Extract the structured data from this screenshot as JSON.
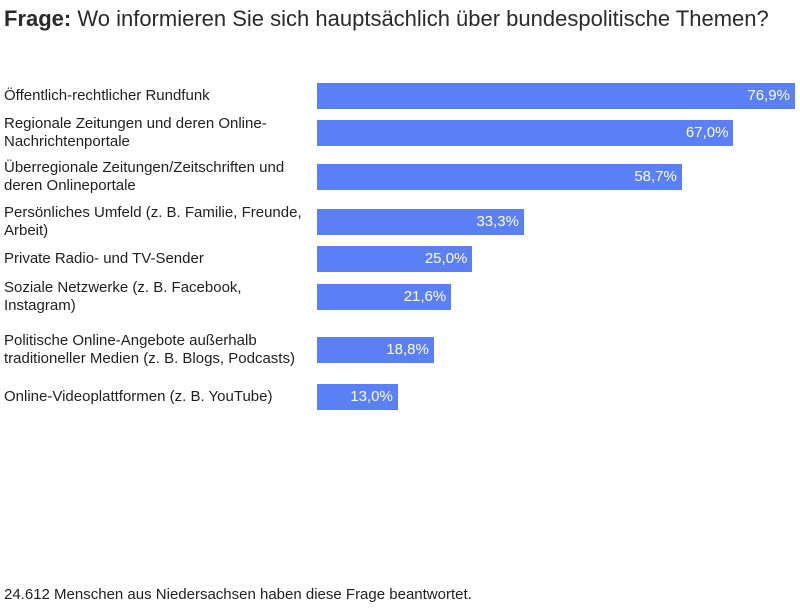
{
  "question": {
    "prefix": "Frage:",
    "text": "Wo informieren Sie sich hauptsächlich über bundespolitische Themen?"
  },
  "chart_data": {
    "type": "bar",
    "orientation": "horizontal",
    "xlim": [
      0,
      76.9
    ],
    "bar_color": "#5b7ff5",
    "value_label_color": "#ffffff",
    "categories": [
      "Öffentlich-rechtlicher Rundfunk",
      "Regionale Zeitungen und deren Online-Nachrichtenportale",
      "Überregionale Zeitungen/Zeitschriften und deren Onlineportale",
      "Persönliches Umfeld (z. B. Familie, Freunde, Arbeit)",
      "Private Radio- und TV-Sender",
      "Soziale Netzwerke (z. B. Facebook, Instagram)",
      "Politische Online-Angebote außerhalb traditioneller Medien (z. B. Blogs, Podcasts)",
      "Online-Videoplattformen (z. B. YouTube)"
    ],
    "values": [
      76.9,
      67.0,
      58.7,
      33.3,
      25.0,
      21.6,
      18.8,
      13.0
    ],
    "value_labels": [
      "76,9%",
      "67,0%",
      "58,7%",
      "33,3%",
      "25,0%",
      "21,6%",
      "18,8%",
      "13,0%"
    ]
  },
  "footnote": "24.612 Menschen aus Niedersachsen haben diese Frage beantwortet."
}
